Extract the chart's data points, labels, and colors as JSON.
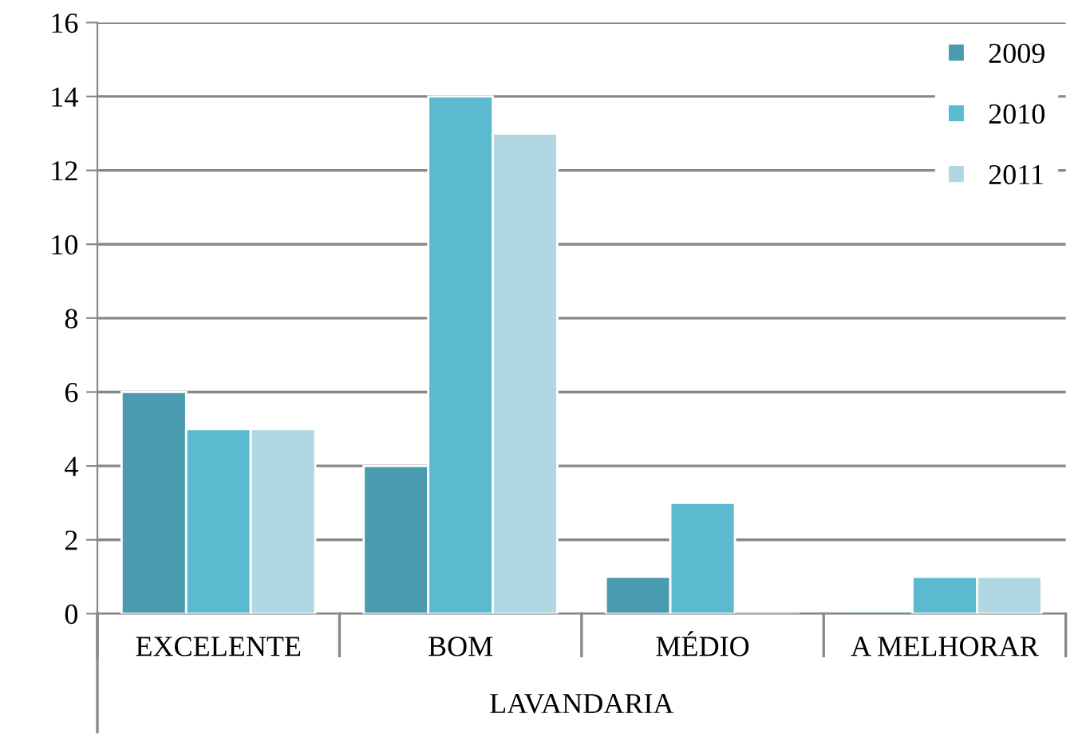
{
  "chart_data": {
    "type": "bar",
    "xlabel": "LAVANDARIA",
    "categories": [
      "EXCELENTE",
      "BOM",
      "MÉDIO",
      "A MELHORAR"
    ],
    "series": [
      {
        "name": "2009",
        "color": "#4a9bb0",
        "values": [
          6,
          4,
          1,
          0
        ]
      },
      {
        "name": "2010",
        "color": "#5bbad0",
        "values": [
          5,
          14,
          3,
          1
        ]
      },
      {
        "name": "2011",
        "color": "#b1d7e2",
        "values": [
          5,
          13,
          0,
          1
        ]
      }
    ],
    "ylim": [
      0,
      16
    ],
    "yticks": [
      0,
      2,
      4,
      6,
      8,
      10,
      12,
      14,
      16
    ],
    "grid": "y",
    "legend": "top right"
  }
}
